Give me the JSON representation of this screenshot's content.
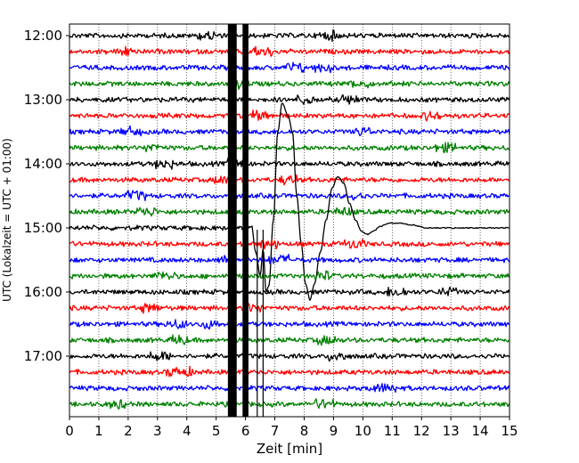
{
  "chart_data": {
    "type": "line",
    "title": "",
    "xlabel": "Zeit  [min]",
    "ylabel": "UTC (Lokalzeit = UTC + 01:00)",
    "xlim": [
      0,
      15
    ],
    "x_ticks": [
      0,
      1,
      2,
      3,
      4,
      5,
      6,
      7,
      8,
      9,
      10,
      11,
      12,
      13,
      14,
      15
    ],
    "y_ticks": [
      "12:00",
      "13:00",
      "14:00",
      "15:00",
      "16:00",
      "17:00"
    ],
    "trace_interval_min": 15,
    "trace_count": 24,
    "first_trace": "12:00",
    "trace_colors": [
      "#000000",
      "#ff0000",
      "#0000ff",
      "#008000"
    ],
    "grid": {
      "x": true,
      "y": false,
      "style": "dotted"
    },
    "events": [
      {
        "trace": "15:00",
        "x_start": 5.4,
        "x_end": 5.7,
        "description": "saturated"
      },
      {
        "trace": "15:00",
        "x_start": 5.9,
        "x_end": 6.1,
        "description": "saturated"
      },
      {
        "trace": "15:00",
        "x_start": 6.1,
        "x_end": 10.5,
        "description": "large-period oscillation"
      }
    ],
    "event_trace_profile": {
      "x": [
        6.2,
        6.35,
        6.5,
        6.6,
        6.7,
        6.8,
        6.95,
        7.1,
        7.25,
        7.45,
        7.6,
        7.75,
        7.9,
        8.05,
        8.2,
        8.35,
        8.55,
        8.75,
        8.95,
        9.15,
        9.35,
        9.55,
        9.75,
        9.95,
        10.15,
        10.35,
        10.6,
        10.9,
        11.2,
        11.6,
        12.2,
        13.0
      ],
      "y_offset_traces": [
        -0.2,
        1.5,
        3.0,
        1.3,
        4.0,
        3.6,
        -0.5,
        -6.0,
        -7.8,
        -7.0,
        -6.0,
        -2.0,
        1.0,
        3.5,
        4.5,
        3.5,
        1.5,
        -0.5,
        -2.5,
        -3.2,
        -2.8,
        -1.5,
        -0.5,
        0.2,
        0.4,
        0.2,
        -0.1,
        -0.3,
        -0.3,
        -0.2,
        0.0,
        0.0
      ]
    }
  }
}
